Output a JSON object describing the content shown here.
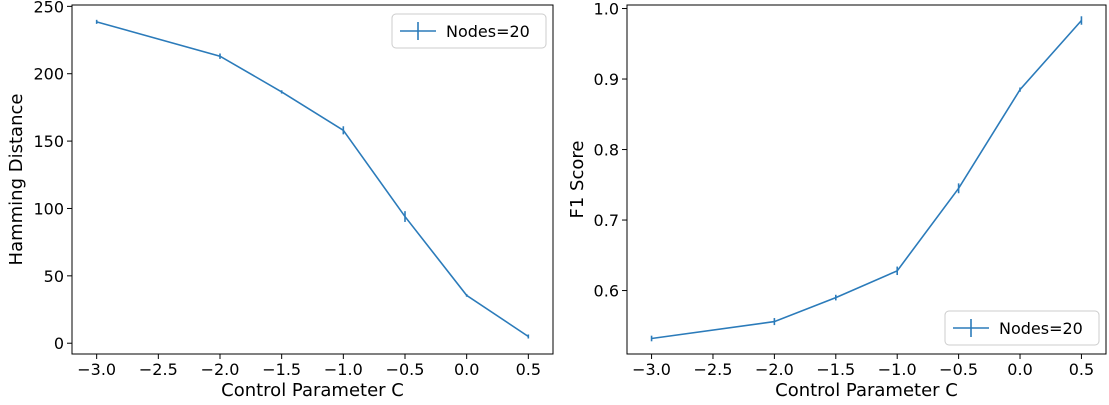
{
  "colors": {
    "series": "#2b7bba",
    "axis": "#000000",
    "legend_border": "#cccccc",
    "background": "#ffffff"
  },
  "chart_data": [
    {
      "type": "line",
      "error_bars": true,
      "xlabel": "Control Parameter C",
      "ylabel": "Hamming Distance",
      "xlim": [
        -3.2,
        0.7
      ],
      "ylim": [
        -8,
        251
      ],
      "xticks": [
        -3.0,
        -2.5,
        -2.0,
        -1.5,
        -1.0,
        -0.5,
        0.0,
        0.5
      ],
      "xtick_labels": [
        "−3.0",
        "−2.5",
        "−2.0",
        "−1.5",
        "−1.0",
        "−0.5",
        "0.0",
        "0.5"
      ],
      "yticks": [
        0,
        50,
        100,
        150,
        200,
        250
      ],
      "ytick_labels": [
        "0",
        "50",
        "100",
        "150",
        "200",
        "250"
      ],
      "grid": false,
      "legend": {
        "placement": "top-right",
        "entries": [
          "Nodes=20"
        ]
      },
      "series": [
        {
          "name": "Nodes=20",
          "x": [
            -3.0,
            -2.0,
            -1.5,
            -1.0,
            -0.5,
            0.0,
            0.5
          ],
          "y": [
            238.5,
            213,
            186.5,
            158,
            94,
            35.5,
            5
          ],
          "err": [
            1.5,
            2.0,
            1.2,
            3.0,
            4.0,
            1.0,
            1.5
          ]
        }
      ]
    },
    {
      "type": "line",
      "error_bars": true,
      "xlabel": "Control Parameter C",
      "ylabel": "F1 Score",
      "xlim": [
        -3.2,
        0.7
      ],
      "ylim": [
        0.51,
        1.005
      ],
      "xticks": [
        -3.0,
        -2.5,
        -2.0,
        -1.5,
        -1.0,
        -0.5,
        0.0,
        0.5
      ],
      "xtick_labels": [
        "−3.0",
        "−2.5",
        "−2.0",
        "−1.5",
        "−1.0",
        "−0.5",
        "0.0",
        "0.5"
      ],
      "yticks": [
        0.6,
        0.7,
        0.8,
        0.9,
        1.0
      ],
      "ytick_labels": [
        "0.6",
        "0.7",
        "0.8",
        "0.9",
        "1.0"
      ],
      "grid": false,
      "legend": {
        "placement": "bottom-right",
        "entries": [
          "Nodes=20"
        ]
      },
      "series": [
        {
          "name": "Nodes=20",
          "x": [
            -3.0,
            -2.0,
            -1.5,
            -1.0,
            -0.5,
            0.0,
            0.5
          ],
          "y": [
            0.532,
            0.556,
            0.59,
            0.628,
            0.745,
            0.885,
            0.983
          ],
          "err": [
            0.004,
            0.005,
            0.004,
            0.006,
            0.007,
            0.003,
            0.006
          ]
        }
      ]
    }
  ]
}
